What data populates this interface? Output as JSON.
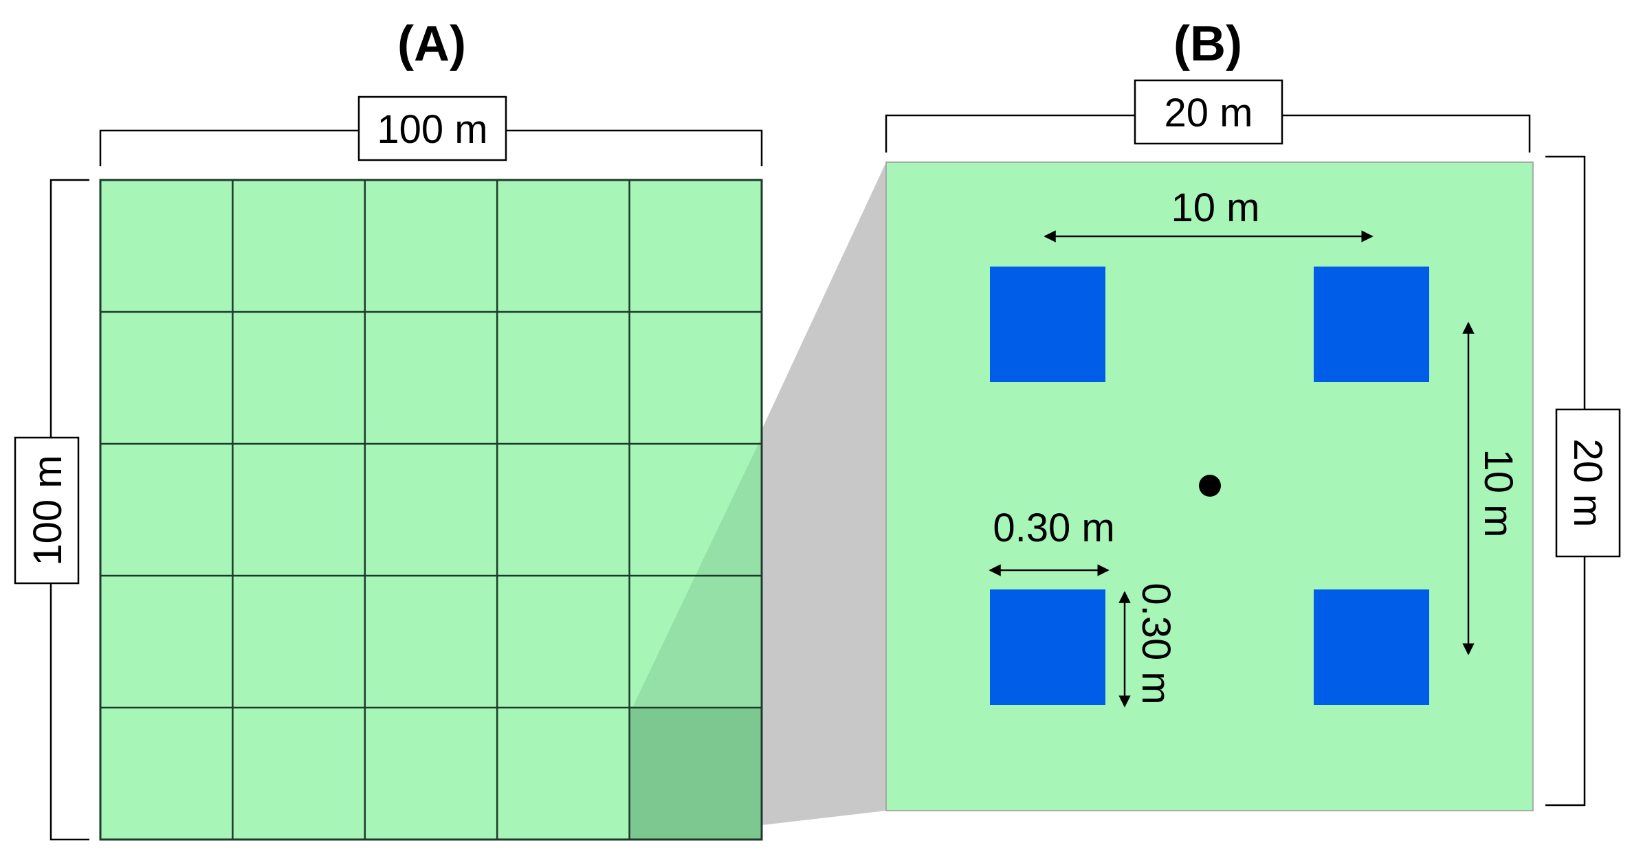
{
  "panels": {
    "a": {
      "label": "(A)",
      "width_label": "100 m",
      "height_label": "100 m",
      "grid_cells": 5
    },
    "b": {
      "label": "(B)",
      "width_label": "20 m",
      "height_label": "20 m",
      "spacing_horizontal_label": "10 m",
      "spacing_vertical_label": "10 m",
      "square_width_label": "0.30 m",
      "square_height_label": "0.30 m"
    }
  },
  "colors": {
    "plot_fill": "#a8f5b8",
    "highlight_fill": "#7dc890",
    "zoom_gray": "#c8c8c8",
    "quadrat_blue": "#005de8",
    "center_dot": "#000000"
  }
}
